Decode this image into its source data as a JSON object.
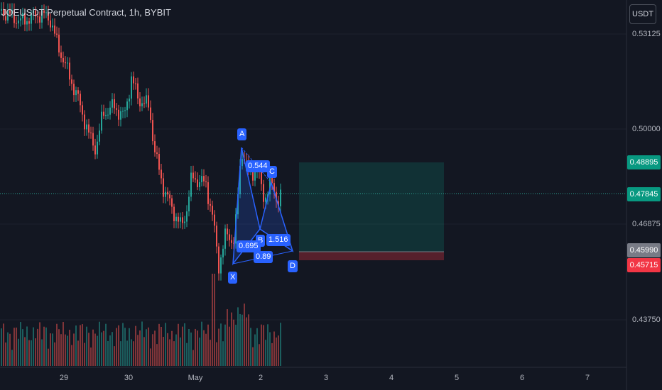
{
  "header": {
    "symbol_title": "JOEUSDT Perpetual Contract, 1h, BYBIT",
    "currency_button": "USDT"
  },
  "price_axis": {
    "labels": [
      "0.53125",
      "0.50000",
      "0.46875",
      "0.43750"
    ]
  },
  "price_tags": {
    "target": {
      "value": "0.48895",
      "color": "#089981"
    },
    "current": {
      "value": "0.47845",
      "color": "#089981"
    },
    "entry": {
      "value": "0.45990",
      "color": "#787b86"
    },
    "stop": {
      "value": "0.45715",
      "color": "#f23645"
    }
  },
  "time_axis": {
    "labels": [
      "29",
      "30",
      "May",
      "2",
      "3",
      "4",
      "5",
      "6",
      "7"
    ]
  },
  "pattern": {
    "points": {
      "x": "X",
      "a": "A",
      "b": "B",
      "c": "C",
      "d": "D"
    },
    "ratios": {
      "xb": "0.695",
      "ac": "0.544",
      "bd": "1.516",
      "xd": "0.89"
    },
    "color": "#2962ff"
  },
  "colors": {
    "up": "#26a69a",
    "down": "#ef5350",
    "background": "#131722"
  }
}
